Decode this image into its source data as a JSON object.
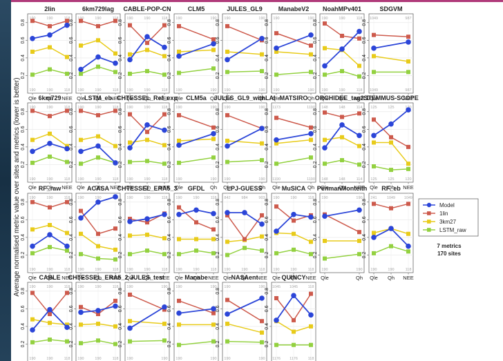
{
  "chart_data": {
    "type": "line",
    "ylabel": "Average normalised metric value over sites and metrics (lower is better)",
    "x": [
      "Qle",
      "Qh",
      "NEE"
    ],
    "ylim": [
      0,
      0.9
    ],
    "yticks": [
      0.2,
      0.4,
      0.6,
      0.8
    ],
    "legend_entries": [
      "Model",
      "1lin",
      "3km27",
      "LSTM_raw"
    ],
    "colors": {
      "Model": "#2b45d8",
      "1lin": "#cd5a4c",
      "3km27": "#e8cb1a",
      "LSTM_raw": "#93d140"
    },
    "note": [
      "7 metrics",
      "170 sites"
    ],
    "panels": [
      {
        "title": "2lin",
        "x": [
          "Qle",
          "Qh",
          "NEE"
        ],
        "counts_top": [
          "190",
          "190",
          "118"
        ],
        "counts_bottom": [
          "190",
          "190",
          "118"
        ],
        "series": {
          "Model": [
            0.62,
            0.66,
            0.77
          ],
          "1lin": [
            0.82,
            0.76,
            0.82
          ],
          "3km27": [
            0.47,
            0.52,
            0.41
          ],
          "LSTM_raw": [
            0.21,
            0.27,
            0.22
          ]
        }
      },
      {
        "title": "6km729lag",
        "x": [
          "Qle",
          "Qh",
          "NEE"
        ],
        "counts_top": [
          "190",
          "190",
          "118"
        ],
        "counts_bottom": [
          "190",
          "190",
          "118"
        ],
        "series": {
          "Model": [
            0.27,
            0.41,
            0.34
          ],
          "1lin": [
            0.82,
            0.76,
            0.82
          ],
          "3km27": [
            0.54,
            0.6,
            0.45
          ],
          "LSTM_raw": [
            0.22,
            0.3,
            0.24
          ]
        }
      },
      {
        "title": "CABLE-POP-CN",
        "x": [
          "Qle",
          "Qh",
          "NEE"
        ],
        "counts_top": [
          "190",
          "190",
          "118"
        ],
        "counts_bottom": [
          "190",
          "190",
          "118"
        ],
        "series": {
          "Model": [
            0.38,
            0.64,
            0.52
          ],
          "1lin": [
            0.77,
            0.57,
            0.77
          ],
          "3km27": [
            0.44,
            0.49,
            0.42
          ],
          "LSTM_raw": [
            0.22,
            0.25,
            0.21
          ]
        }
      },
      {
        "title": "CLM5",
        "x": [
          "Qle",
          "Qh"
        ],
        "counts_top": [
          "190",
          "190"
        ],
        "counts_bottom": [
          "190",
          "190"
        ],
        "series": {
          "Model": [
            0.42,
            0.56
          ],
          "1lin": [
            0.76,
            0.61
          ],
          "3km27": [
            0.47,
            0.49
          ],
          "LSTM_raw": [
            0.23,
            0.28
          ]
        }
      },
      {
        "title": "JULES_GL9",
        "x": [
          "Qle",
          "Qh"
        ],
        "counts_top": [
          "190",
          "190"
        ],
        "counts_bottom": [
          "190",
          "190"
        ],
        "series": {
          "Model": [
            0.38,
            0.62
          ],
          "1lin": [
            0.76,
            0.6
          ],
          "3km27": [
            0.47,
            0.44
          ],
          "LSTM_raw": [
            0.24,
            0.25
          ]
        }
      },
      {
        "title": "ManabeV2",
        "x": [
          "Qle",
          "Qh"
        ],
        "counts_top": [
          "190",
          "190"
        ],
        "counts_bottom": [
          "190",
          "190"
        ],
        "series": {
          "Model": [
            0.51,
            0.66
          ],
          "1lin": [
            0.68,
            0.54
          ],
          "3km27": [
            0.47,
            0.44
          ],
          "LSTM_raw": [
            0.21,
            0.24
          ]
        }
      },
      {
        "title": "NoahMPv401",
        "x": [
          "Qle",
          "Qh",
          "NEE"
        ],
        "counts_top": [
          "190",
          "190",
          "118"
        ],
        "counts_bottom": [
          "190",
          "190",
          "118"
        ],
        "series": {
          "Model": [
            0.31,
            0.5,
            0.7
          ],
          "1lin": [
            0.79,
            0.65,
            0.62
          ],
          "3km27": [
            0.51,
            0.49,
            0.31
          ],
          "LSTM_raw": [
            0.21,
            0.25,
            0.19
          ]
        }
      },
      {
        "title": "SDGVM",
        "x": [
          "Qle",
          "NEE"
        ],
        "counts_top": [
          "1049",
          "987"
        ],
        "counts_bottom": [
          "1049",
          "987"
        ],
        "series": {
          "Model": [
            0.51,
            0.58
          ],
          "1lin": [
            0.66,
            0.64
          ],
          "3km27": [
            0.42,
            0.36
          ],
          "LSTM_raw": [
            0.24,
            0.24
          ]
        }
      },
      {
        "title": "6km729",
        "x": [
          "Qle",
          "Qh",
          "NEE"
        ],
        "counts_top": [
          "190",
          "190",
          "118"
        ],
        "counts_bottom": [
          "190",
          "190",
          "118"
        ],
        "series": {
          "Model": [
            0.35,
            0.44,
            0.38
          ],
          "1lin": [
            0.81,
            0.75,
            0.81
          ],
          "3km27": [
            0.48,
            0.55,
            0.41
          ],
          "LSTM_raw": [
            0.22,
            0.29,
            0.23
          ]
        }
      },
      {
        "title": "LSTM_eb",
        "x": [
          "Qle",
          "Qh",
          "NEE"
        ],
        "counts_top": [
          "190",
          "190",
          "118"
        ],
        "counts_bottom": [
          "190",
          "190",
          "118"
        ],
        "series": {
          "Model": [
            0.35,
            0.41,
            0.22
          ],
          "1lin": [
            0.81,
            0.76,
            0.81
          ],
          "3km27": [
            0.48,
            0.52,
            0.41
          ],
          "LSTM_raw": [
            0.21,
            0.28,
            0.22
          ]
        }
      },
      {
        "title": "CHTESSEL_Ref_exp",
        "x": [
          "Qle",
          "Qh",
          "NEE"
        ],
        "counts_top": [
          "190",
          "190",
          "118"
        ],
        "counts_bottom": [
          "190",
          "190",
          "118"
        ],
        "series": {
          "Model": [
            0.39,
            0.65,
            0.59
          ],
          "1lin": [
            0.77,
            0.57,
            0.77
          ],
          "3km27": [
            0.45,
            0.48,
            0.42
          ],
          "LSTM_raw": [
            0.23,
            0.24,
            0.21
          ]
        }
      },
      {
        "title": "CLM5a",
        "x": [
          "Qle",
          "Qh"
        ],
        "counts_top": [
          "190",
          "190"
        ],
        "counts_bottom": [
          "190",
          "190"
        ],
        "series": {
          "Model": [
            0.42,
            0.55
          ],
          "1lin": [
            0.76,
            0.62
          ],
          "3km27": [
            0.47,
            0.49
          ],
          "LSTM_raw": [
            0.22,
            0.28
          ]
        }
      },
      {
        "title": "JULES_GL9_withLAI",
        "x": [
          "Qle",
          "Qh"
        ],
        "counts_top": [
          "190",
          "190"
        ],
        "counts_bottom": [
          "190",
          "190"
        ],
        "series": {
          "Model": [
            0.41,
            0.61
          ],
          "1lin": [
            0.76,
            0.61
          ],
          "3km27": [
            0.47,
            0.44
          ],
          "LSTM_raw": [
            0.23,
            0.25
          ]
        }
      },
      {
        "title": "MATSIRO",
        "x": [
          "Qle",
          "Qh"
        ],
        "counts_top": [
          "1173",
          "1190"
        ],
        "counts_bottom": [
          "1190",
          "1190"
        ],
        "series": {
          "Model": [
            0.48,
            0.55
          ],
          "1lin": [
            0.73,
            0.62
          ],
          "3km27": [
            0.44,
            0.48
          ],
          "LSTM_raw": [
            0.21,
            0.28
          ]
        }
      },
      {
        "title": "ORCHIDEE_tag2.1",
        "x": [
          "Qle",
          "Qh",
          "NEE"
        ],
        "counts_top": [
          "148",
          "148",
          "114"
        ],
        "counts_bottom": [
          "148",
          "148",
          "114"
        ],
        "series": {
          "Model": [
            0.39,
            0.65,
            0.53
          ],
          "1lin": [
            0.79,
            0.74,
            0.78
          ],
          "3km27": [
            0.48,
            0.51,
            0.41
          ],
          "LSTM_raw": [
            0.21,
            0.25,
            0.2
          ]
        }
      },
      {
        "title": "STEMMUS-SCOPE",
        "x": [
          "Qle",
          "Qh",
          "NEE"
        ],
        "counts_top": [
          "125",
          "125",
          "120"
        ],
        "counts_bottom": [
          "125",
          "125",
          "120"
        ],
        "series": {
          "Model": [
            0.53,
            0.66,
            0.82
          ],
          "1lin": [
            0.71,
            0.51,
            0.4
          ],
          "3km27": [
            0.45,
            0.45,
            0.21
          ],
          "LSTM_raw": [
            0.18,
            0.14,
            0.15
          ]
        }
      },
      {
        "title": "RF_raw",
        "x": [
          "Qle",
          "Qh",
          "NEE"
        ],
        "counts_top": [
          "190",
          "190",
          "118"
        ],
        "counts_bottom": [
          "190",
          "190",
          "118"
        ],
        "series": {
          "Model": [
            0.3,
            0.43,
            0.3
          ],
          "1lin": [
            0.8,
            0.74,
            0.8
          ],
          "3km27": [
            0.49,
            0.54,
            0.45
          ],
          "LSTM_raw": [
            0.22,
            0.29,
            0.25
          ]
        }
      },
      {
        "title": "ACASA",
        "x": [
          "Qle",
          "Qh",
          "NEE"
        ],
        "counts_top": [
          "190",
          "190",
          "118"
        ],
        "counts_bottom": [
          "190",
          "190",
          "118"
        ],
        "series": {
          "Model": [
            0.62,
            0.8,
            0.86
          ],
          "1lin": [
            0.7,
            0.44,
            0.5
          ],
          "3km27": [
            0.44,
            0.3,
            0.26
          ],
          "LSTM_raw": [
            0.21,
            0.16,
            0.15
          ]
        }
      },
      {
        "title": "CHTESSEL_ERA5_3",
        "x": [
          "Qle",
          "Qh",
          "NEE"
        ],
        "counts_top": [
          "190",
          "190",
          "118"
        ],
        "counts_bottom": [
          "190",
          "190",
          "118"
        ],
        "series": {
          "Model": [
            0.58,
            0.61,
            0.66
          ],
          "1lin": [
            0.61,
            0.57,
            0.67
          ],
          "3km27": [
            0.42,
            0.43,
            0.39
          ],
          "LSTM_raw": [
            0.21,
            0.25,
            0.21
          ]
        }
      },
      {
        "title": "GFDL",
        "x": [
          "Qle",
          "Qh",
          "NEE"
        ],
        "counts_top": [
          "190",
          "190",
          "118"
        ],
        "counts_bottom": [
          "190",
          "190",
          "118"
        ],
        "series": {
          "Model": [
            0.66,
            0.71,
            0.67
          ],
          "1lin": [
            0.74,
            0.57,
            0.49
          ],
          "3km27": [
            0.38,
            0.38,
            0.38
          ],
          "LSTM_raw": [
            0.21,
            0.25,
            0.22
          ]
        }
      },
      {
        "title": "LPJ-GUESS",
        "x": [
          "Qle",
          "Qh",
          "NEE"
        ],
        "counts_top": [
          "842",
          "984",
          "903"
        ],
        "counts_bottom": [
          "190",
          "190",
          "118"
        ],
        "series": {
          "Model": [
            0.68,
            0.68,
            0.55
          ],
          "1lin": [
            0.65,
            0.38,
            0.65
          ],
          "3km27": [
            0.35,
            0.37,
            0.41
          ],
          "LSTM_raw": [
            0.2,
            0.28,
            0.25
          ]
        }
      },
      {
        "title": "MuSICA",
        "x": [
          "Qle",
          "Qh",
          "NEE"
        ],
        "counts_top": [
          "190",
          "190",
          "118"
        ],
        "counts_bottom": [
          "190",
          "190",
          "118"
        ],
        "series": {
          "Model": [
            0.47,
            0.66,
            0.63
          ],
          "1lin": [
            0.75,
            0.59,
            0.65
          ],
          "3km27": [
            0.45,
            0.44,
            0.35
          ],
          "LSTM_raw": [
            0.22,
            0.26,
            0.21
          ]
        }
      },
      {
        "title": "PenmanMonteith",
        "x": [
          "Qle",
          "Qh"
        ],
        "counts_top": [
          "190",
          "190"
        ],
        "counts_bottom": [
          "190",
          "190"
        ],
        "series": {
          "Model": [
            0.64,
            0.71
          ],
          "1lin": [
            0.66,
            0.46
          ],
          "3km27": [
            0.36,
            0.36
          ],
          "LSTM_raw": [
            0.16,
            0.21
          ]
        }
      },
      {
        "title": "RF_eb",
        "x": [
          "Qle",
          "Qh",
          "NEE"
        ],
        "counts_top": [
          "241",
          "1049",
          "1049"
        ],
        "counts_bottom": [
          "190",
          "190",
          "118"
        ],
        "series": {
          "Model": [
            0.4,
            0.5,
            0.3
          ],
          "1lin": [
            0.78,
            0.73,
            0.78
          ],
          "3km27": [
            0.45,
            0.5,
            0.44
          ],
          "LSTM_raw": [
            0.22,
            0.3,
            0.24
          ]
        }
      },
      {
        "title": "CABLE",
        "x": [
          "Qle",
          "Qh",
          "NEE"
        ],
        "counts_top": [
          "190",
          "190",
          "118"
        ],
        "counts_bottom": [
          "190",
          "190",
          "118"
        ],
        "series": {
          "Model": [
            0.36,
            0.59,
            0.39
          ],
          "1lin": [
            0.78,
            0.54,
            0.78
          ],
          "3km27": [
            0.48,
            0.44,
            0.42
          ],
          "LSTM_raw": [
            0.22,
            0.25,
            0.23
          ]
        }
      },
      {
        "title": "CHTESSEL_ERA5_2",
        "x": [
          "Qle",
          "Qh",
          "NEE"
        ],
        "counts_top": [
          "190",
          "190",
          "118"
        ],
        "counts_bottom": [
          "190",
          "190",
          "118"
        ],
        "series": {
          "Model": [
            0.56,
            0.58,
            0.63
          ],
          "1lin": [
            0.62,
            0.54,
            0.69
          ],
          "3km27": [
            0.42,
            0.43,
            0.4
          ],
          "LSTM_raw": [
            0.21,
            0.24,
            0.2
          ]
        }
      },
      {
        "title": "JULES_test",
        "x": [
          "Qle",
          "Qh"
        ],
        "counts_top": [
          "190",
          "190"
        ],
        "counts_bottom": [
          "190",
          "190"
        ],
        "series": {
          "Model": [
            0.38,
            0.62
          ],
          "1lin": [
            0.76,
            0.59
          ],
          "3km27": [
            0.46,
            0.43
          ],
          "LSTM_raw": [
            0.23,
            0.24
          ]
        }
      },
      {
        "title": "Manabe",
        "x": [
          "Qle",
          "Qh"
        ],
        "counts_top": [
          "190",
          "190"
        ],
        "counts_bottom": [
          "190",
          "190"
        ],
        "series": {
          "Model": [
            0.55,
            0.6
          ],
          "1lin": [
            0.69,
            0.55
          ],
          "3km27": [
            0.42,
            0.42
          ],
          "LSTM_raw": [
            0.19,
            0.23
          ]
        }
      },
      {
        "title": "NASAent",
        "x": [
          "Qle",
          "Qh"
        ],
        "counts_top": [
          "190",
          "190"
        ],
        "counts_bottom": [
          "190",
          "190"
        ],
        "series": {
          "Model": [
            0.54,
            0.72
          ],
          "1lin": [
            0.7,
            0.46
          ],
          "3km27": [
            0.43,
            0.33
          ],
          "LSTM_raw": [
            0.23,
            0.22
          ]
        }
      },
      {
        "title": "QUINCY",
        "x": [
          "Qle",
          "Qh",
          "NEE"
        ],
        "counts_top": [
          "1045",
          "1045",
          "118"
        ],
        "counts_bottom": [
          "1176",
          "1176",
          "118"
        ],
        "series": {
          "Model": [
            0.47,
            0.75,
            0.53
          ],
          "1lin": [
            0.72,
            0.47,
            0.77
          ],
          "3km27": [
            0.46,
            0.34,
            0.4
          ],
          "LSTM_raw": [
            0.19,
            0.19,
            0.19
          ]
        }
      }
    ]
  }
}
